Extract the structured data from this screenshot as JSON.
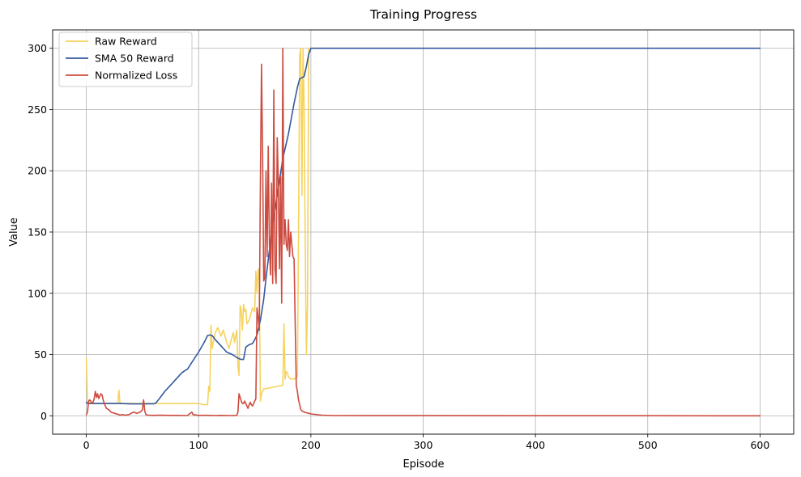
{
  "chart_data": {
    "type": "line",
    "title": "Training Progress",
    "xlabel": "Episode",
    "ylabel": "Value",
    "xlim": [
      -30,
      630
    ],
    "ylim": [
      -15,
      315
    ],
    "xticks": [
      0,
      100,
      200,
      300,
      400,
      500,
      600
    ],
    "yticks": [
      0,
      50,
      100,
      150,
      200,
      250,
      300
    ],
    "grid": true,
    "legend_position": "top-left",
    "series": [
      {
        "name": "Raw Reward",
        "color": "#f5d35e",
        "x": [
          0,
          1,
          5,
          10,
          20,
          28,
          29,
          30,
          31,
          40,
          50,
          51,
          52,
          60,
          70,
          80,
          90,
          100,
          105,
          108,
          109,
          110,
          111,
          112,
          113,
          115,
          117,
          120,
          122,
          125,
          127,
          130,
          131,
          132,
          134,
          135,
          136,
          137,
          138,
          139,
          140,
          141,
          142,
          143,
          145,
          148,
          150,
          151,
          152,
          153,
          154,
          155,
          156,
          157,
          158,
          160,
          165,
          170,
          175,
          176,
          177,
          178,
          179,
          180,
          182,
          185,
          188,
          189,
          190,
          191,
          192,
          193,
          194,
          195,
          196,
          197,
          198,
          199,
          200,
          210,
          250,
          300,
          400,
          500,
          550,
          600
        ],
        "y": [
          47,
          12,
          10,
          10,
          10,
          10,
          21,
          10,
          10,
          10,
          10,
          10,
          10,
          10,
          10,
          10,
          10,
          10,
          9,
          9,
          24,
          20,
          74,
          55,
          60,
          68,
          72,
          65,
          70,
          60,
          55,
          65,
          68,
          60,
          70,
          40,
          33,
          90,
          86,
          70,
          91,
          85,
          87,
          75,
          78,
          88,
          85,
          118,
          100,
          120,
          110,
          12,
          18,
          20,
          22,
          22,
          23,
          24,
          25,
          75,
          30,
          36,
          35,
          32,
          30,
          30,
          32,
          150,
          295,
          300,
          180,
          300,
          250,
          137,
          50,
          90,
          300,
          300,
          300,
          300,
          300,
          300,
          300,
          300,
          300,
          300
        ]
      },
      {
        "name": "SMA 50 Reward",
        "color": "#3359a0",
        "x": [
          0,
          1,
          5,
          10,
          20,
          30,
          40,
          50,
          55,
          60,
          62,
          65,
          70,
          75,
          80,
          85,
          88,
          90,
          95,
          100,
          105,
          108,
          110,
          112,
          115,
          120,
          125,
          130,
          135,
          138,
          140,
          142,
          145,
          148,
          150,
          152,
          155,
          158,
          160,
          165,
          170,
          175,
          180,
          185,
          188,
          190,
          192,
          194,
          196,
          198,
          200,
          210,
          300,
          400,
          500,
          550,
          600
        ],
        "y": [
          11,
          10,
          10,
          10,
          10,
          10,
          9.7,
          9.7,
          9.8,
          9.8,
          10.5,
          14,
          20,
          25,
          30,
          35,
          37,
          38,
          45,
          52,
          60,
          65.5,
          66,
          65.5,
          62,
          57,
          52,
          50,
          47,
          46,
          46,
          56,
          58,
          59,
          62,
          66,
          78,
          95,
          112,
          150,
          180,
          210,
          230,
          255,
          268,
          275,
          276,
          277,
          285,
          295,
          300,
          300,
          300,
          300,
          300,
          300,
          300
        ]
      },
      {
        "name": "Normalized Loss",
        "color": "#cd4b3f",
        "x": [
          0,
          1,
          2,
          3,
          4,
          5,
          6,
          7,
          8,
          9,
          10,
          11,
          12,
          13,
          14,
          15,
          16,
          18,
          20,
          22,
          25,
          27,
          29,
          30,
          32,
          35,
          38,
          40,
          42,
          45,
          48,
          50,
          51,
          52,
          53,
          55,
          60,
          65,
          70,
          80,
          90,
          94,
          95,
          100,
          105,
          110,
          115,
          120,
          125,
          130,
          134,
          135,
          136,
          137,
          138,
          139,
          140,
          141,
          142,
          143,
          144,
          145,
          146,
          147,
          148,
          149,
          150,
          151,
          152,
          153,
          154,
          155,
          156,
          157,
          158,
          159,
          160,
          161,
          162,
          163,
          164,
          165,
          166,
          167,
          168,
          169,
          170,
          171,
          172,
          173,
          174,
          175,
          176,
          177,
          178,
          179,
          180,
          181,
          182,
          183,
          184,
          185,
          186,
          187,
          188,
          189,
          190,
          191,
          192,
          194,
          196,
          198,
          200,
          205,
          210,
          220,
          250,
          300,
          400,
          500,
          600
        ],
        "y": [
          1,
          3,
          12,
          13,
          12,
          10,
          11,
          14,
          20,
          15,
          18,
          14,
          16,
          18,
          17,
          13,
          10,
          6,
          5,
          3,
          2,
          1.5,
          1,
          0.5,
          1,
          0.5,
          1,
          2,
          3,
          2,
          3,
          5,
          13,
          4,
          1,
          0.5,
          0.3,
          0.5,
          0.4,
          0.3,
          0.2,
          3,
          1,
          0.3,
          0.4,
          0.3,
          0.2,
          0.3,
          0.2,
          0.2,
          0.3,
          3,
          18,
          15,
          12,
          10,
          10,
          12,
          10,
          8,
          6,
          9,
          11,
          9,
          8,
          10,
          12,
          14,
          88,
          80,
          70,
          190,
          287,
          210,
          110,
          113,
          200,
          130,
          220,
          140,
          115,
          190,
          108,
          266,
          120,
          108,
          227,
          190,
          120,
          195,
          92,
          300,
          140,
          160,
          140,
          135,
          160,
          130,
          150,
          140,
          130,
          128,
          75,
          25,
          20,
          13,
          9,
          5,
          4,
          3,
          2.5,
          2,
          1.5,
          1,
          0.5,
          0.2,
          0.1,
          0.1,
          0.05,
          0.03,
          0.01
        ]
      }
    ]
  }
}
